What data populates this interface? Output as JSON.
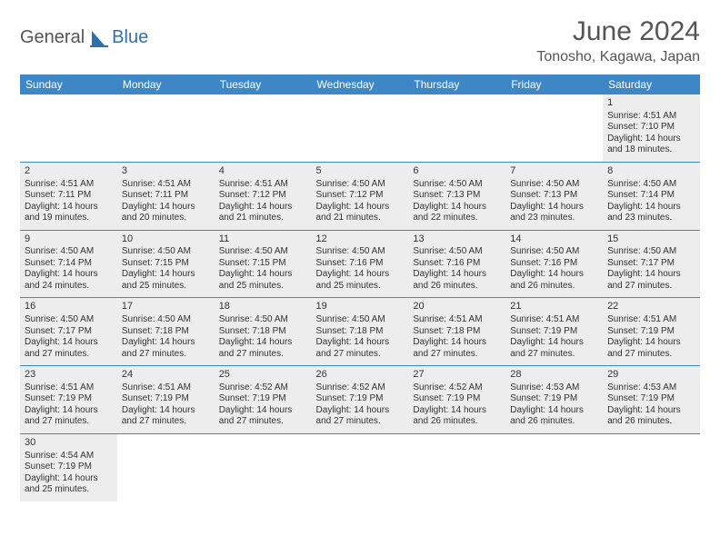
{
  "brand": {
    "left": "General",
    "right": "Blue",
    "accent_color": "#2f6fb0"
  },
  "title": "June 2024",
  "location": "Tonosho, Kagawa, Japan",
  "colors": {
    "header_bg": "#3d87c7",
    "header_text": "#ffffff",
    "shaded_cell": "#ededed",
    "row_divider": "#3d87c7",
    "text": "#333333"
  },
  "day_names": [
    "Sunday",
    "Monday",
    "Tuesday",
    "Wednesday",
    "Thursday",
    "Friday",
    "Saturday"
  ],
  "weeks": [
    [
      null,
      null,
      null,
      null,
      null,
      null,
      {
        "d": "1",
        "sr": "4:51 AM",
        "ss": "7:10 PM",
        "dh": 14,
        "dm": 18
      }
    ],
    [
      {
        "d": "2",
        "sr": "4:51 AM",
        "ss": "7:11 PM",
        "dh": 14,
        "dm": 19
      },
      {
        "d": "3",
        "sr": "4:51 AM",
        "ss": "7:11 PM",
        "dh": 14,
        "dm": 20
      },
      {
        "d": "4",
        "sr": "4:51 AM",
        "ss": "7:12 PM",
        "dh": 14,
        "dm": 21
      },
      {
        "d": "5",
        "sr": "4:50 AM",
        "ss": "7:12 PM",
        "dh": 14,
        "dm": 21
      },
      {
        "d": "6",
        "sr": "4:50 AM",
        "ss": "7:13 PM",
        "dh": 14,
        "dm": 22
      },
      {
        "d": "7",
        "sr": "4:50 AM",
        "ss": "7:13 PM",
        "dh": 14,
        "dm": 23
      },
      {
        "d": "8",
        "sr": "4:50 AM",
        "ss": "7:14 PM",
        "dh": 14,
        "dm": 23
      }
    ],
    [
      {
        "d": "9",
        "sr": "4:50 AM",
        "ss": "7:14 PM",
        "dh": 14,
        "dm": 24
      },
      {
        "d": "10",
        "sr": "4:50 AM",
        "ss": "7:15 PM",
        "dh": 14,
        "dm": 25
      },
      {
        "d": "11",
        "sr": "4:50 AM",
        "ss": "7:15 PM",
        "dh": 14,
        "dm": 25
      },
      {
        "d": "12",
        "sr": "4:50 AM",
        "ss": "7:16 PM",
        "dh": 14,
        "dm": 25
      },
      {
        "d": "13",
        "sr": "4:50 AM",
        "ss": "7:16 PM",
        "dh": 14,
        "dm": 26
      },
      {
        "d": "14",
        "sr": "4:50 AM",
        "ss": "7:16 PM",
        "dh": 14,
        "dm": 26
      },
      {
        "d": "15",
        "sr": "4:50 AM",
        "ss": "7:17 PM",
        "dh": 14,
        "dm": 27
      }
    ],
    [
      {
        "d": "16",
        "sr": "4:50 AM",
        "ss": "7:17 PM",
        "dh": 14,
        "dm": 27
      },
      {
        "d": "17",
        "sr": "4:50 AM",
        "ss": "7:18 PM",
        "dh": 14,
        "dm": 27
      },
      {
        "d": "18",
        "sr": "4:50 AM",
        "ss": "7:18 PM",
        "dh": 14,
        "dm": 27
      },
      {
        "d": "19",
        "sr": "4:50 AM",
        "ss": "7:18 PM",
        "dh": 14,
        "dm": 27
      },
      {
        "d": "20",
        "sr": "4:51 AM",
        "ss": "7:18 PM",
        "dh": 14,
        "dm": 27
      },
      {
        "d": "21",
        "sr": "4:51 AM",
        "ss": "7:19 PM",
        "dh": 14,
        "dm": 27
      },
      {
        "d": "22",
        "sr": "4:51 AM",
        "ss": "7:19 PM",
        "dh": 14,
        "dm": 27
      }
    ],
    [
      {
        "d": "23",
        "sr": "4:51 AM",
        "ss": "7:19 PM",
        "dh": 14,
        "dm": 27
      },
      {
        "d": "24",
        "sr": "4:51 AM",
        "ss": "7:19 PM",
        "dh": 14,
        "dm": 27
      },
      {
        "d": "25",
        "sr": "4:52 AM",
        "ss": "7:19 PM",
        "dh": 14,
        "dm": 27
      },
      {
        "d": "26",
        "sr": "4:52 AM",
        "ss": "7:19 PM",
        "dh": 14,
        "dm": 27
      },
      {
        "d": "27",
        "sr": "4:52 AM",
        "ss": "7:19 PM",
        "dh": 14,
        "dm": 26
      },
      {
        "d": "28",
        "sr": "4:53 AM",
        "ss": "7:19 PM",
        "dh": 14,
        "dm": 26
      },
      {
        "d": "29",
        "sr": "4:53 AM",
        "ss": "7:19 PM",
        "dh": 14,
        "dm": 26
      }
    ],
    [
      {
        "d": "30",
        "sr": "4:54 AM",
        "ss": "7:19 PM",
        "dh": 14,
        "dm": 25
      },
      null,
      null,
      null,
      null,
      null,
      null
    ]
  ]
}
